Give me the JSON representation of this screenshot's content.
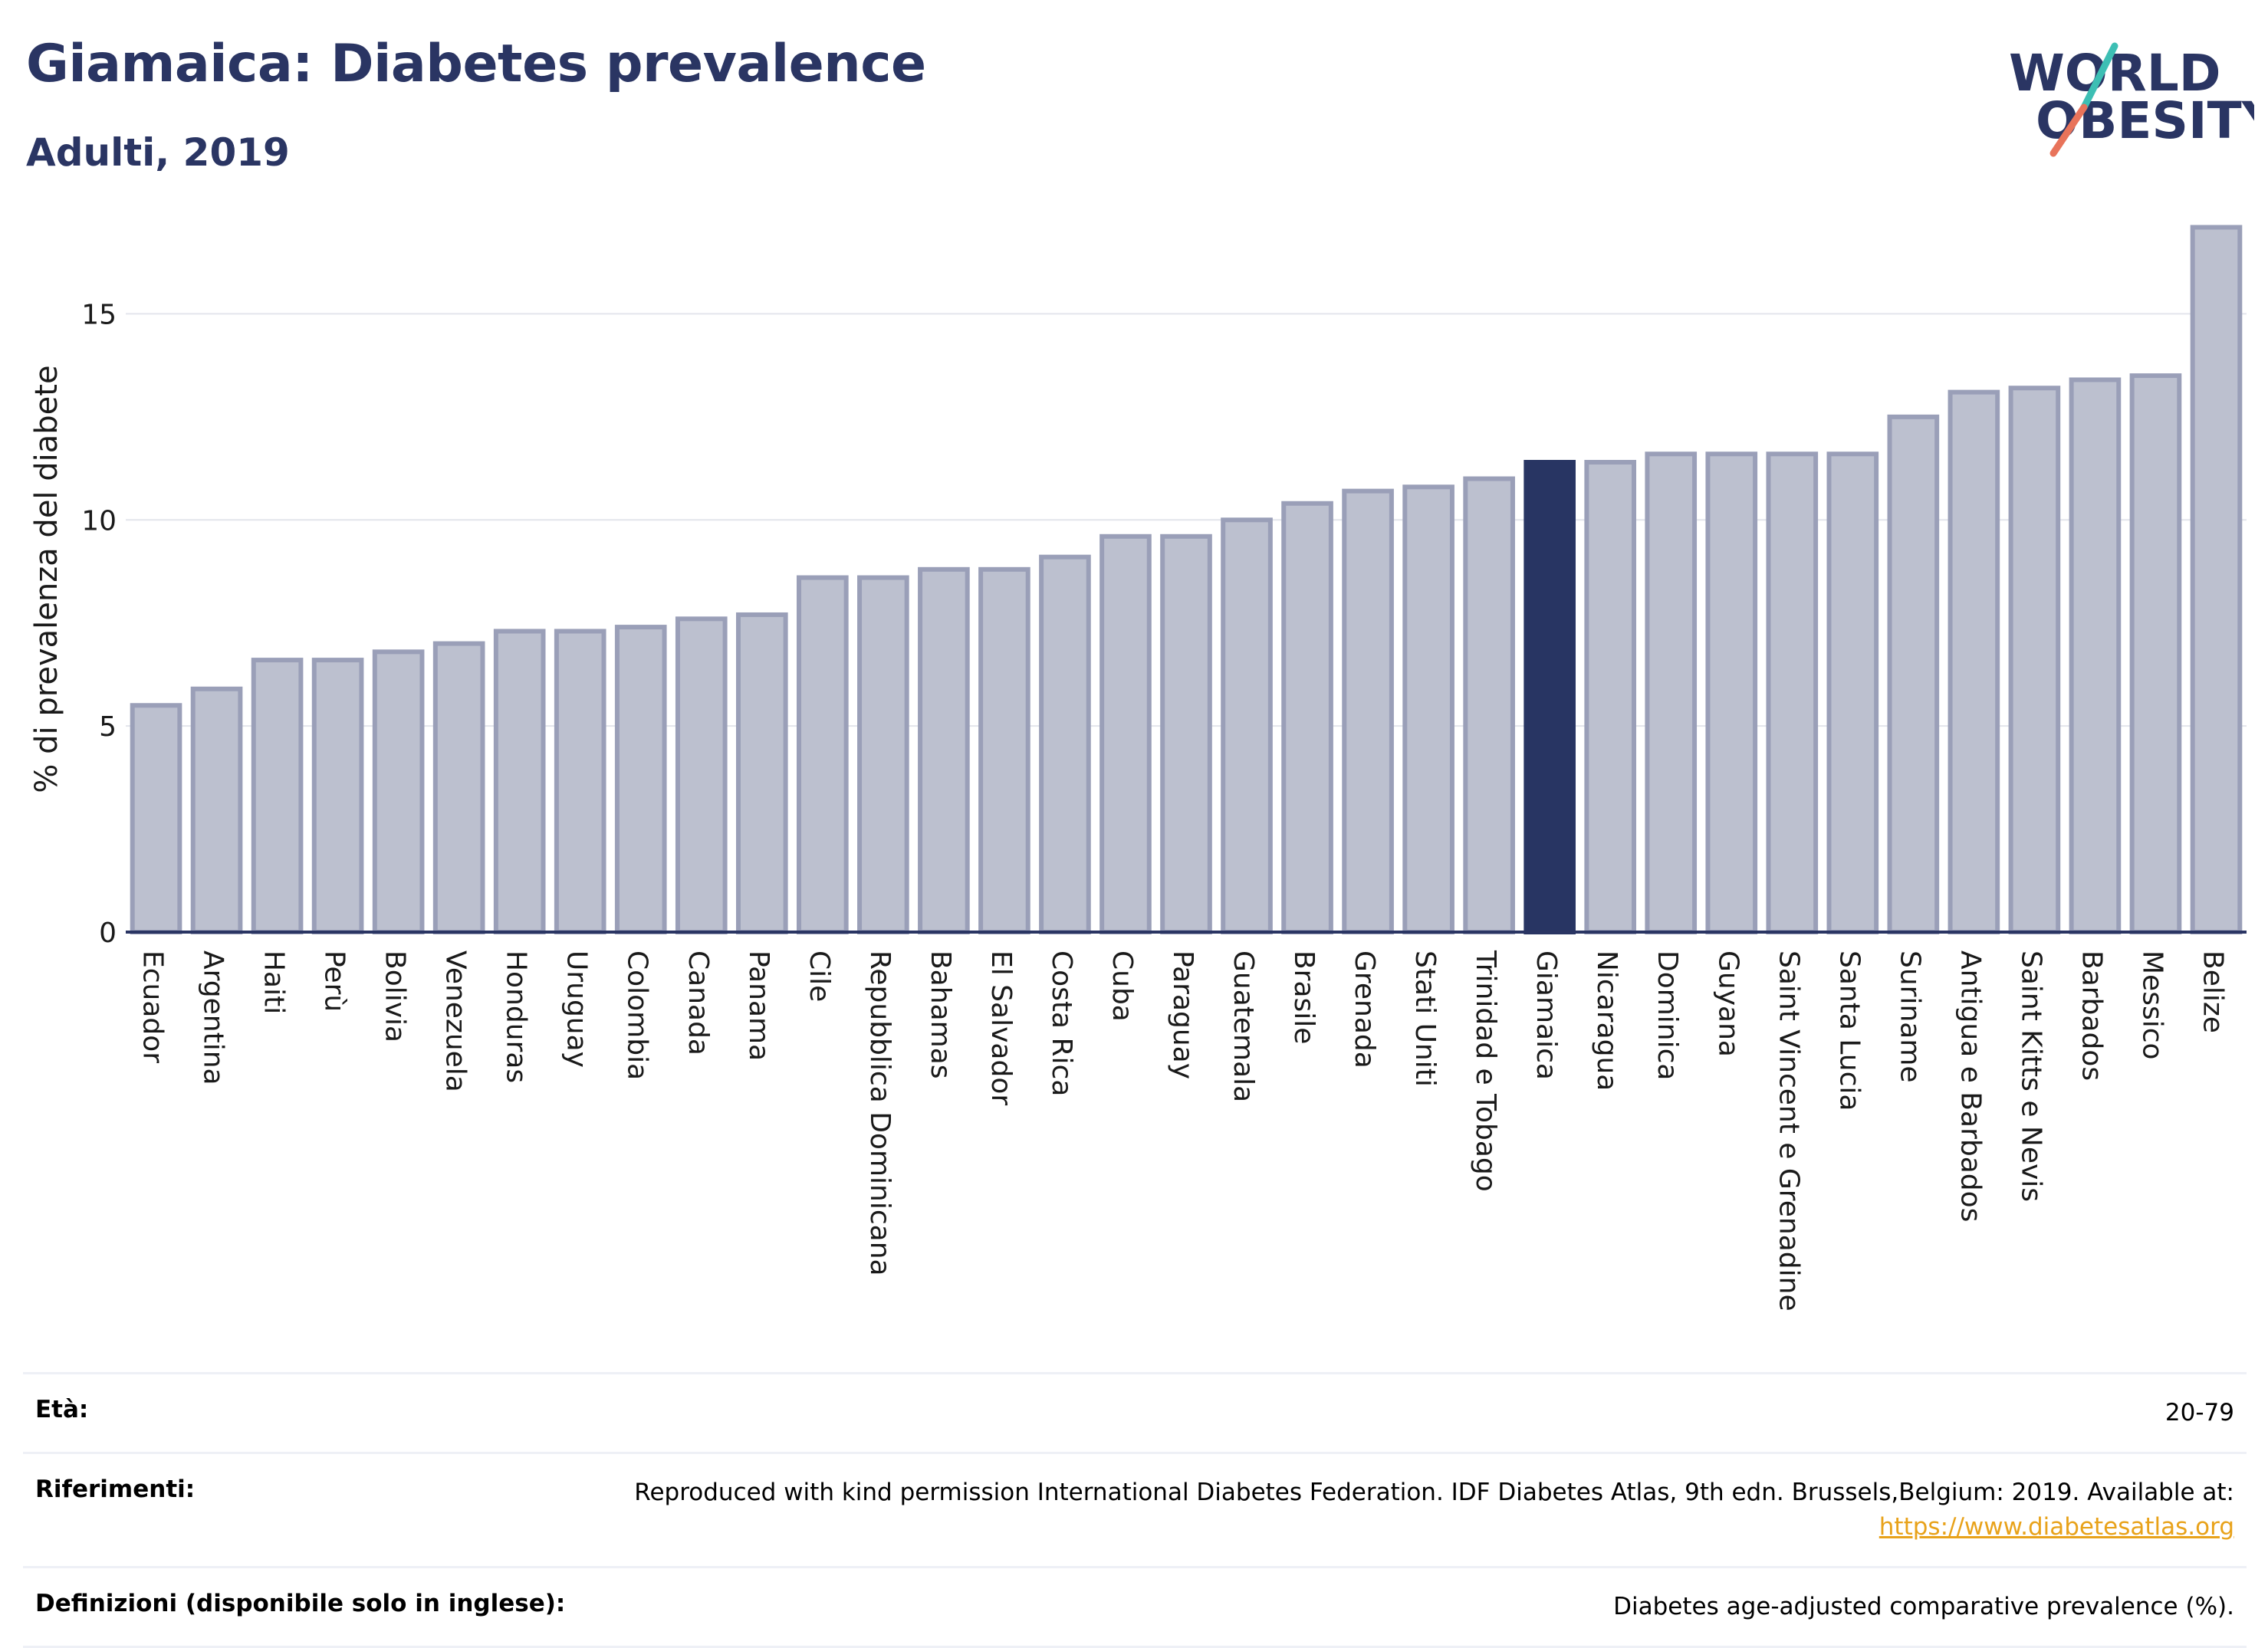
{
  "header": {
    "title": "Giamaica: Diabetes prevalence",
    "subtitle": "Adulti, 2019"
  },
  "logo": {
    "line1": "WORLD",
    "line2": "OBESITY"
  },
  "chart_data": {
    "type": "bar",
    "ylabel": "% di prevalenza del diabete",
    "xlabel": "",
    "ylim": [
      0,
      17.5
    ],
    "yticks": [
      0,
      5,
      10,
      15
    ],
    "grid": true,
    "highlight": "Giamaica",
    "colors": {
      "default": "#bcc0cf",
      "default_border": "#9a9fb8",
      "highlight": "#283563",
      "axis": "#2a3563",
      "grid": "#e3e5ec"
    },
    "categories": [
      "Ecuador",
      "Argentina",
      "Haiti",
      "Perù",
      "Bolivia",
      "Venezuela",
      "Honduras",
      "Uruguay",
      "Colombia",
      "Canada",
      "Panama",
      "Cile",
      "Repubblica Dominicana",
      "Bahamas",
      "El Salvador",
      "Costa Rica",
      "Cuba",
      "Paraguay",
      "Guatemala",
      "Brasile",
      "Grenada",
      "Stati Uniti",
      "Trinidad e Tobago",
      "Giamaica",
      "Nicaragua",
      "Dominica",
      "Guyana",
      "Saint Vincent e Grenadine",
      "Santa Lucia",
      "Suriname",
      "Antigua e Barbados",
      "Saint Kitts e Nevis",
      "Barbados",
      "Messico",
      "Belize"
    ],
    "values": [
      5.5,
      5.9,
      6.6,
      6.6,
      6.8,
      7.0,
      7.3,
      7.3,
      7.4,
      7.6,
      7.7,
      8.6,
      8.6,
      8.8,
      8.8,
      9.1,
      9.6,
      9.6,
      10.0,
      10.4,
      10.7,
      10.8,
      11.0,
      11.4,
      11.4,
      11.6,
      11.6,
      11.6,
      11.6,
      12.5,
      13.1,
      13.2,
      13.4,
      13.5,
      17.1
    ]
  },
  "info": {
    "age": {
      "label": "Età:",
      "value": "20-79"
    },
    "references": {
      "label": "Riferimenti:",
      "value": "Reproduced with kind permission International Diabetes Federation. IDF Diabetes Atlas, 9th edn. Brussels,Belgium: 2019. Available at:",
      "link": "https://www.diabetesatlas.org"
    },
    "definitions": {
      "label": "Definizioni (disponibile solo in inglese):",
      "value": "Diabetes age-adjusted comparative prevalence (%)."
    }
  }
}
